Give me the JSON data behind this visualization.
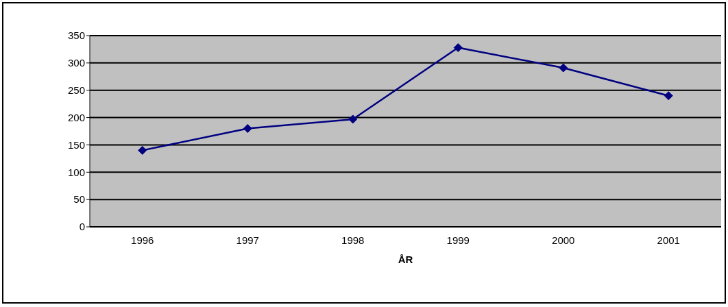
{
  "chart_data": {
    "type": "line",
    "xlabel": "ÅR",
    "categories": [
      "1996",
      "1997",
      "1998",
      "1999",
      "2000",
      "2001"
    ],
    "series": [
      {
        "color": "#000080",
        "values": [
          140,
          180,
          197,
          328,
          291,
          240
        ]
      }
    ],
    "ylim": [
      0,
      350
    ],
    "yticks": [
      0,
      50,
      100,
      150,
      200,
      250,
      300,
      350
    ],
    "grid": "y",
    "marker": "diamond"
  }
}
